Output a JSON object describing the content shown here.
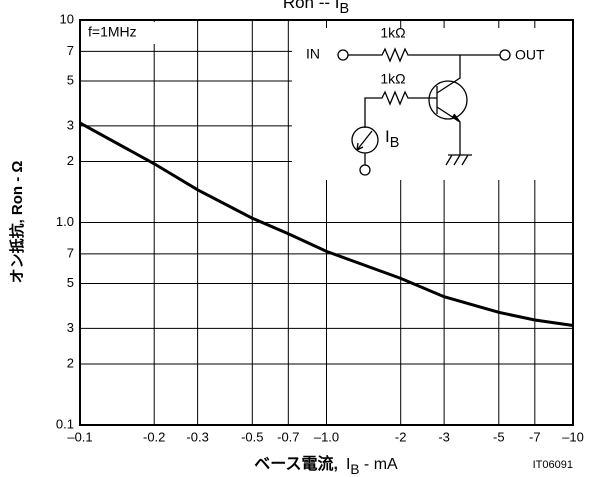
{
  "chart_data": {
    "type": "line",
    "title": [
      "Ron -- I",
      "B"
    ],
    "ylabel": "オン抵抗, Ron - Ω",
    "xlabel": [
      "ベース電流,",
      "I",
      "B",
      " - mA"
    ],
    "figure_code": "IT06091",
    "annotations": {
      "condition": "f=1MHz",
      "in": "IN",
      "out": "OUT",
      "r1": "1kΩ",
      "r2": "1kΩ",
      "source": [
        "I",
        "B"
      ]
    },
    "log_x": true,
    "log_y": true,
    "grid": true,
    "xlim": [
      -0.1,
      -10
    ],
    "xticks": [
      {
        "value": -0.1,
        "label": "–0.1"
      },
      -0.2,
      -0.3,
      -0.5,
      -0.7,
      {
        "value": -1.0,
        "label": "–1.0"
      },
      -2,
      -3,
      -5,
      -7,
      {
        "value": -10,
        "label": "–10"
      }
    ],
    "ylim": [
      0.1,
      10
    ],
    "yticks": [
      {
        "value": 0.1,
        "label": "0.1"
      },
      {
        "value": 0.2,
        "label": "2"
      },
      {
        "value": 0.3,
        "label": "3"
      },
      {
        "value": 0.5,
        "label": "5"
      },
      {
        "value": 0.7,
        "label": "7"
      },
      {
        "value": 1.0,
        "label": "1.0"
      },
      2,
      3,
      5,
      7,
      10
    ],
    "x": [
      -0.1,
      -0.2,
      -0.3,
      -0.5,
      -0.7,
      -1.0,
      -2,
      -3,
      -5,
      -7,
      -10
    ],
    "series": [
      {
        "color": "#000000",
        "values": [
          3.1,
          1.95,
          1.45,
          1.05,
          0.88,
          0.72,
          0.53,
          0.43,
          0.36,
          0.33,
          0.31
        ]
      }
    ]
  }
}
